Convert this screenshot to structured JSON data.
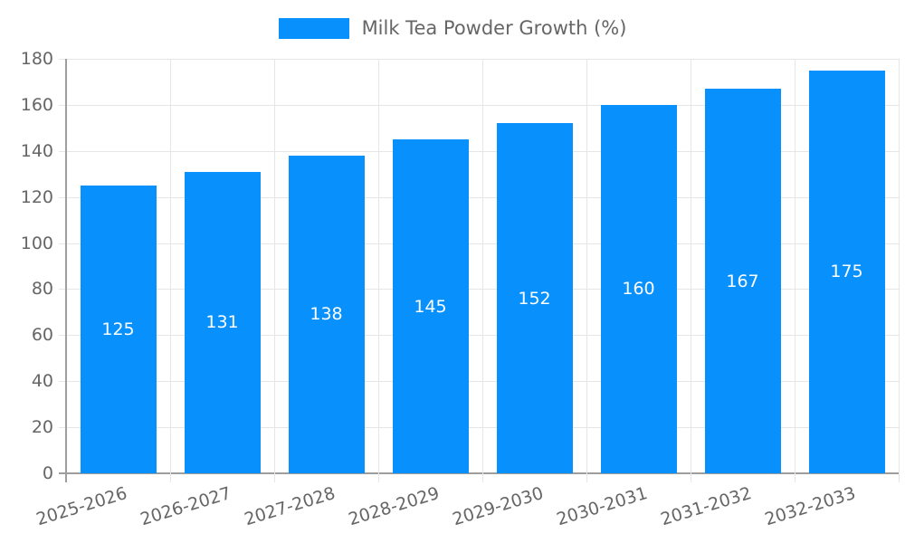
{
  "chart_data": {
    "type": "bar",
    "title": "Milk Tea Powder Growth (%)",
    "legend": {
      "label": "Milk Tea Powder Growth (%)",
      "position": "top"
    },
    "categories": [
      "2025-2026",
      "2026-2027",
      "2027-2028",
      "2028-2029",
      "2029-2030",
      "2030-2031",
      "2031-2032",
      "2032-2033"
    ],
    "series": [
      {
        "name": "Milk Tea Powder Growth (%)",
        "values": [
          125,
          131,
          138,
          145,
          152,
          160,
          167,
          175
        ]
      }
    ],
    "data_labels_shown": true,
    "xlabel": "",
    "ylabel": "",
    "ylim": [
      0,
      180
    ],
    "yticks": [
      0,
      20,
      40,
      60,
      80,
      100,
      120,
      140,
      160,
      180
    ],
    "grid": true,
    "x_label_rotation_deg": 17,
    "colors": {
      "bar": "#0890fc",
      "bar_value_label": "#ffffff",
      "axis_text": "#666666",
      "legend_text": "#666666",
      "grid_line": "#e6e6e6",
      "axis_line": "#9e9e9e",
      "background": "#ffffff"
    }
  }
}
